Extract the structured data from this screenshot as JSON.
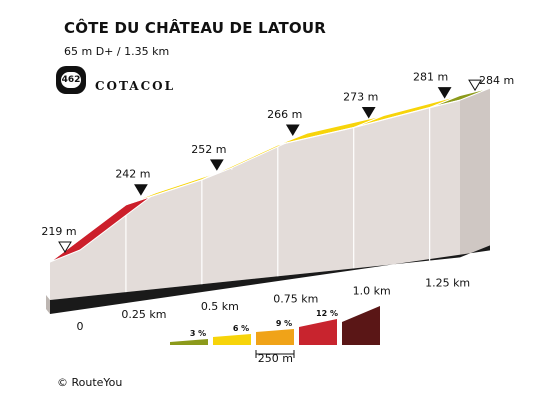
{
  "header": {
    "title": "CÔTE DU CHÂTEAU DE LATOUR",
    "subtitle": "65 m D+ / 1.35 km",
    "badge_number": "462",
    "brand": "COTACOL"
  },
  "footer": {
    "credit": "© RouteYou"
  },
  "chart_data": {
    "type": "area",
    "title": "CÔTE DU CHÂTEAU DE LATOUR",
    "xlabel": "",
    "ylabel": "",
    "x_unit": "km",
    "y_unit": "m",
    "xlim": [
      0,
      1.35
    ],
    "x_ticks": [
      {
        "value": 0,
        "label": "0"
      },
      {
        "value": 0.25,
        "label": "0.25 km"
      },
      {
        "value": 0.5,
        "label": "0.5 km"
      },
      {
        "value": 0.75,
        "label": "0.75 km"
      },
      {
        "value": 1.0,
        "label": "1.0 km"
      },
      {
        "value": 1.25,
        "label": "1.25 km"
      }
    ],
    "points": [
      {
        "x": 0,
        "y": 219,
        "label": "219 m",
        "marker": "start"
      },
      {
        "x": 0.25,
        "y": 242,
        "label": "242 m",
        "marker": "point"
      },
      {
        "x": 0.5,
        "y": 252,
        "label": "252 m",
        "marker": "point"
      },
      {
        "x": 0.75,
        "y": 266,
        "label": "266 m",
        "marker": "point"
      },
      {
        "x": 1.0,
        "y": 273,
        "label": "273 m",
        "marker": "point"
      },
      {
        "x": 1.25,
        "y": 281,
        "label": "281 m",
        "marker": "point"
      },
      {
        "x": 1.35,
        "y": 284,
        "label": "284 m",
        "marker": "end"
      }
    ],
    "segment_colors": [
      "#cc1f2b",
      "#f7d40a",
      "#f7d40a",
      "#f7d40a",
      "#f7d40a",
      "#8c9a1b"
    ],
    "legend": {
      "items": [
        {
          "label": "3 %",
          "color": "#8c9a1b"
        },
        {
          "label": "6 %",
          "color": "#f7d40a"
        },
        {
          "label": "9 %",
          "color": "#f0a318"
        },
        {
          "label": "12 %",
          "color": "#c8242e"
        },
        {
          "label": "",
          "color": "#5a1616"
        }
      ],
      "scale_label": "250 m"
    }
  }
}
